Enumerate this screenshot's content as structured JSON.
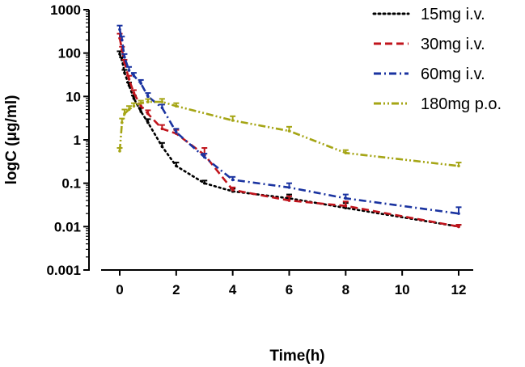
{
  "chart_data": {
    "type": "line",
    "title": "",
    "xlabel": "Time(h)",
    "ylabel": "logC (μg/ml)",
    "x_scale": "linear",
    "y_scale": "log",
    "xlim": [
      0,
      12
    ],
    "ylim": [
      0.001,
      1000
    ],
    "x_ticks": [
      "0",
      "2",
      "4",
      "6",
      "8",
      "10",
      "12"
    ],
    "y_ticks": [
      "0.001",
      "0.01",
      "0.1",
      "1",
      "10",
      "100",
      "1000"
    ],
    "grid": false,
    "legend_position": "top-right",
    "series": [
      {
        "name": "15mg i.v.",
        "color": "#000000",
        "dash": "dotted",
        "points": [
          {
            "x": 0,
            "y": 95,
            "err": 15
          },
          {
            "x": 0.08,
            "y": 70,
            "err": 10
          },
          {
            "x": 0.17,
            "y": 35,
            "err": 6
          },
          {
            "x": 0.33,
            "y": 18,
            "err": 3
          },
          {
            "x": 0.5,
            "y": 9,
            "err": 1.5
          },
          {
            "x": 0.75,
            "y": 4.5,
            "err": 1
          },
          {
            "x": 1,
            "y": 2.5,
            "err": 0.5
          },
          {
            "x": 1.5,
            "y": 0.7,
            "err": 0.15
          },
          {
            "x": 2,
            "y": 0.25,
            "err": 0.05
          },
          {
            "x": 3,
            "y": 0.1,
            "err": 0.015
          },
          {
            "x": 4,
            "y": 0.065,
            "err": 0.01
          },
          {
            "x": 6,
            "y": 0.045,
            "err": 0.01
          },
          {
            "x": 8,
            "y": 0.027,
            "err": 0.008
          },
          {
            "x": 12,
            "y": 0.01,
            "err": 0.001
          }
        ]
      },
      {
        "name": "30mg i.v.",
        "color": "#c0141c",
        "dash": "dashed",
        "points": [
          {
            "x": 0,
            "y": 220,
            "err": 60
          },
          {
            "x": 0.08,
            "y": 120,
            "err": 20
          },
          {
            "x": 0.17,
            "y": 60,
            "err": 10
          },
          {
            "x": 0.33,
            "y": 25,
            "err": 5
          },
          {
            "x": 0.5,
            "y": 12,
            "err": 2
          },
          {
            "x": 0.75,
            "y": 6,
            "err": 1
          },
          {
            "x": 1,
            "y": 4,
            "err": 0.8
          },
          {
            "x": 1.5,
            "y": 1.8,
            "err": 0.4
          },
          {
            "x": 2,
            "y": 1.4,
            "err": 0.3
          },
          {
            "x": 3,
            "y": 0.45,
            "err": 0.2
          },
          {
            "x": 4,
            "y": 0.07,
            "err": 0.01
          },
          {
            "x": 6,
            "y": 0.04,
            "err": 0.01
          },
          {
            "x": 8,
            "y": 0.03,
            "err": 0.008
          },
          {
            "x": 12,
            "y": 0.01,
            "err": 0.001
          }
        ]
      },
      {
        "name": "60mg i.v.",
        "color": "#1a33a0",
        "dash": "dashdot",
        "points": [
          {
            "x": 0,
            "y": 350,
            "err": 80
          },
          {
            "x": 0.08,
            "y": 200,
            "err": 40
          },
          {
            "x": 0.17,
            "y": 80,
            "err": 15
          },
          {
            "x": 0.33,
            "y": 40,
            "err": 8
          },
          {
            "x": 0.5,
            "y": 30,
            "err": 5
          },
          {
            "x": 0.75,
            "y": 20,
            "err": 4
          },
          {
            "x": 1,
            "y": 10,
            "err": 2
          },
          {
            "x": 1.5,
            "y": 5.5,
            "err": 1
          },
          {
            "x": 2,
            "y": 1.5,
            "err": 0.3
          },
          {
            "x": 3,
            "y": 0.4,
            "err": 0.08
          },
          {
            "x": 4,
            "y": 0.12,
            "err": 0.02
          },
          {
            "x": 6,
            "y": 0.08,
            "err": 0.02
          },
          {
            "x": 8,
            "y": 0.045,
            "err": 0.01
          },
          {
            "x": 12,
            "y": 0.02,
            "err": 0.008
          }
        ]
      },
      {
        "name": "180mg p.o.",
        "color": "#a5a515",
        "dash": "dashdotdot",
        "points": [
          {
            "x": 0,
            "y": 0.55,
            "err": 0.1
          },
          {
            "x": 0.08,
            "y": 2.5,
            "err": 0.6
          },
          {
            "x": 0.17,
            "y": 4,
            "err": 1
          },
          {
            "x": 0.33,
            "y": 5,
            "err": 1
          },
          {
            "x": 0.5,
            "y": 6,
            "err": 1
          },
          {
            "x": 0.75,
            "y": 7,
            "err": 1
          },
          {
            "x": 1,
            "y": 7.5,
            "err": 1.2
          },
          {
            "x": 1.5,
            "y": 7.5,
            "err": 1.3
          },
          {
            "x": 2,
            "y": 6,
            "err": 1
          },
          {
            "x": 4,
            "y": 2.8,
            "err": 0.7
          },
          {
            "x": 6,
            "y": 1.6,
            "err": 0.4
          },
          {
            "x": 8,
            "y": 0.5,
            "err": 0.08
          },
          {
            "x": 12,
            "y": 0.25,
            "err": 0.05
          }
        ]
      }
    ]
  }
}
